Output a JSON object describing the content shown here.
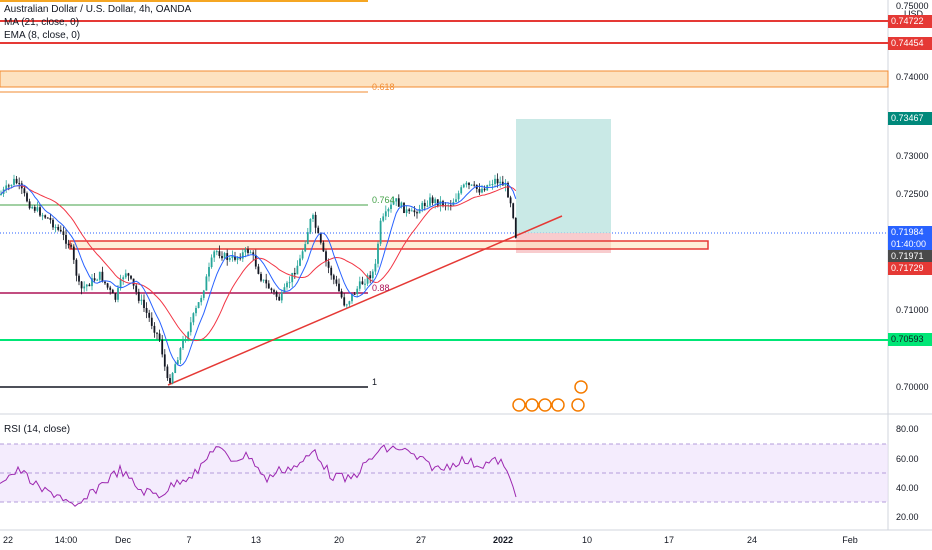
{
  "legend": {
    "symbol": "Australian Dollar / U.S. Dollar, 4h, OANDA",
    "ma": "MA (21, close, 0)",
    "ema": "EMA (8, close, 0)",
    "rsi": "RSI (14, close)"
  },
  "price_axis": {
    "currency": "USD",
    "ticks": [
      "0.75000",
      "0.74000",
      "0.73000",
      "0.72500",
      "0.71000",
      "0.70000"
    ],
    "tags": {
      "red_top": "0.74722",
      "red_second": "0.74454",
      "target": "0.73467",
      "current": "0.71984",
      "countdown": "01:40:00",
      "ema_value": "0.71971",
      "ma_value": "0.71729",
      "green_line": "0.70593"
    }
  },
  "rsi_axis": {
    "ticks": [
      "80.00",
      "60.00",
      "40.00",
      "20.00"
    ]
  },
  "time_axis": {
    "labels": [
      "22",
      "14:00",
      "Dec",
      "7",
      "13",
      "20",
      "27",
      "2022",
      "10",
      "17",
      "24",
      "Feb"
    ]
  },
  "fib_labels": {
    "f618": "0.618",
    "f764": "0.764",
    "f88": "0.88",
    "f1": "1"
  },
  "colors": {
    "bull": "#26a69a",
    "bear": "#131722",
    "ma": "#f23645",
    "ema": "#2962ff",
    "rsi_line": "#9c27b0",
    "rsi_band": "#ede0fb",
    "red_line": "#f23645",
    "green_line": "#00e676",
    "target_zone": "#b2dfdb",
    "stop_zone": "#f7c6c9",
    "orange_zone": "#fde2c0"
  }
}
